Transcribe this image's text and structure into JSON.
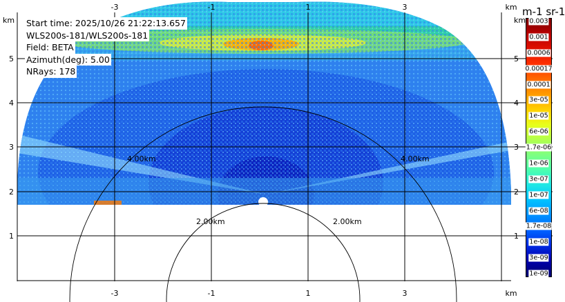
{
  "info": {
    "start_time": "Start time: 2025/10/26 21:22:13.657",
    "instrument": "WLS200s-181/WLS200s-181",
    "field": "Field: BETA",
    "azimuth": "Azimuth(deg): 5.00",
    "nrays": "NRays: 178"
  },
  "axes": {
    "x_ticks": [
      "-3",
      "-1",
      "1",
      "3"
    ],
    "x_unit": "km",
    "y_ticks": [
      "1",
      "2",
      "3",
      "4",
      "5"
    ],
    "y_unit": "km"
  },
  "range_rings": [
    {
      "label": "2.00km",
      "label_right": "2.00km"
    },
    {
      "label": "4.00km",
      "label_right": "4.00km"
    }
  ],
  "colorbar": {
    "title": "m-1 sr-1",
    "labels": [
      "0.003",
      "0.001",
      "0.0006",
      "0.00017",
      "0.0001",
      "3e-05",
      "1e-05",
      "6e-06",
      "1.7e-06",
      "1e-06",
      "3e-07",
      "1e-07",
      "6e-08",
      "1.7e-08",
      "1e-08",
      "3e-09",
      "1e-09"
    ],
    "colors": [
      "#7f0000",
      "#b80000",
      "#e01000",
      "#ff3000",
      "#ff6a00",
      "#ff9c00",
      "#ffd000",
      "#e8ff1a",
      "#b0ff4e",
      "#7cff82",
      "#4cffb0",
      "#1ee6e6",
      "#00c0ff",
      "#0090ff",
      "#0060ff",
      "#0028e0",
      "#0000a8",
      "#00006f"
    ]
  }
}
